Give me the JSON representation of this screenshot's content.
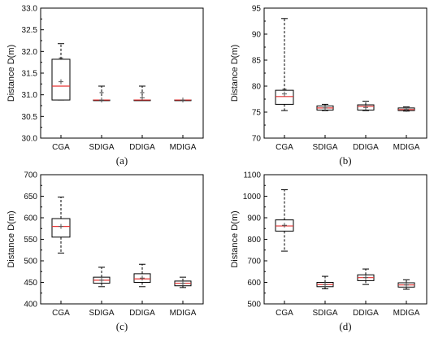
{
  "chart_data": [
    {
      "type": "box",
      "caption": "(a)",
      "ylabel": "Distance D(m)",
      "ylim": [
        30.0,
        33.0
      ],
      "yticks": [
        "30.0",
        "30.5",
        "31.0",
        "31.5",
        "32.0",
        "32.5",
        "33.0"
      ],
      "categories": [
        "CGA",
        "SDIGA",
        "DDIGA",
        "MDIGA"
      ],
      "boxes": [
        {
          "whisker_low": 30.88,
          "q1": 30.88,
          "median": 31.2,
          "q3": 31.82,
          "whisker_high": 32.18,
          "mean": 31.3,
          "outliers_high": [
            31.85
          ]
        },
        {
          "whisker_low": 30.88,
          "q1": 30.88,
          "median": 30.88,
          "q3": 30.88,
          "whisker_high": 31.2,
          "mean": 30.88,
          "outliers_high": [
            31.05
          ]
        },
        {
          "whisker_low": 30.88,
          "q1": 30.88,
          "median": 30.88,
          "q3": 30.88,
          "whisker_high": 31.2,
          "mean": 30.93,
          "outliers_high": [
            31.05
          ]
        },
        {
          "whisker_low": 30.88,
          "q1": 30.88,
          "median": 30.88,
          "q3": 30.88,
          "whisker_high": 30.88,
          "mean": 30.88,
          "outliers_high": []
        }
      ]
    },
    {
      "type": "box",
      "caption": "(b)",
      "ylabel": "Distance D(m)",
      "ylim": [
        70,
        95
      ],
      "yticks": [
        "70",
        "75",
        "80",
        "85",
        "90",
        "95"
      ],
      "categories": [
        "CGA",
        "SDIGA",
        "DDIGA",
        "MDIGA"
      ],
      "boxes": [
        {
          "whisker_low": 75.3,
          "q1": 76.5,
          "median": 78.0,
          "q3": 79.2,
          "whisker_high": 93.0,
          "mean": 78.5,
          "outliers_high": [
            79.4
          ]
        },
        {
          "whisker_low": 75.3,
          "q1": 75.4,
          "median": 75.8,
          "q3": 76.2,
          "whisker_high": 76.5,
          "mean": 75.8,
          "outliers_high": []
        },
        {
          "whisker_low": 75.3,
          "q1": 75.4,
          "median": 76.1,
          "q3": 76.4,
          "whisker_high": 77.1,
          "mean": 75.9,
          "outliers_high": []
        },
        {
          "whisker_low": 75.2,
          "q1": 75.3,
          "median": 75.5,
          "q3": 75.8,
          "whisker_high": 76.0,
          "mean": 75.5,
          "outliers_high": []
        }
      ]
    },
    {
      "type": "box",
      "caption": "(c)",
      "ylabel": "Distance D(m)",
      "ylim": [
        400,
        700
      ],
      "yticks": [
        "400",
        "450",
        "500",
        "550",
        "600",
        "650",
        "700"
      ],
      "categories": [
        "CGA",
        "SDIGA",
        "DDIGA",
        "MDIGA"
      ],
      "boxes": [
        {
          "whisker_low": 518,
          "q1": 555,
          "median": 580,
          "q3": 598,
          "whisker_high": 648,
          "mean": 580,
          "outliers_high": []
        },
        {
          "whisker_low": 440,
          "q1": 448,
          "median": 455,
          "q3": 462,
          "whisker_high": 485,
          "mean": 455,
          "outliers_high": []
        },
        {
          "whisker_low": 440,
          "q1": 450,
          "median": 458,
          "q3": 470,
          "whisker_high": 492,
          "mean": 460,
          "outliers_high": []
        },
        {
          "whisker_low": 438,
          "q1": 442,
          "median": 448,
          "q3": 453,
          "whisker_high": 462,
          "mean": 448,
          "outliers_high": []
        }
      ]
    },
    {
      "type": "box",
      "caption": "(d)",
      "ylabel": "Distance D(m)",
      "ylim": [
        500,
        1100
      ],
      "yticks": [
        "500",
        "600",
        "700",
        "800",
        "900",
        "1000",
        "1100"
      ],
      "categories": [
        "CGA",
        "SDIGA",
        "DDIGA",
        "MDIGA"
      ],
      "boxes": [
        {
          "whisker_low": 745,
          "q1": 838,
          "median": 862,
          "q3": 890,
          "whisker_high": 1030,
          "mean": 865,
          "outliers_high": []
        },
        {
          "whisker_low": 570,
          "q1": 580,
          "median": 590,
          "q3": 600,
          "whisker_high": 628,
          "mean": 590,
          "outliers_high": []
        },
        {
          "whisker_low": 590,
          "q1": 608,
          "median": 622,
          "q3": 635,
          "whisker_high": 662,
          "mean": 622,
          "outliers_high": []
        },
        {
          "whisker_low": 568,
          "q1": 578,
          "median": 588,
          "q3": 598,
          "whisker_high": 612,
          "mean": 588,
          "outliers_high": []
        }
      ]
    }
  ],
  "colors": {
    "median": "#e53030",
    "box": "#000000",
    "text": "#111111"
  }
}
